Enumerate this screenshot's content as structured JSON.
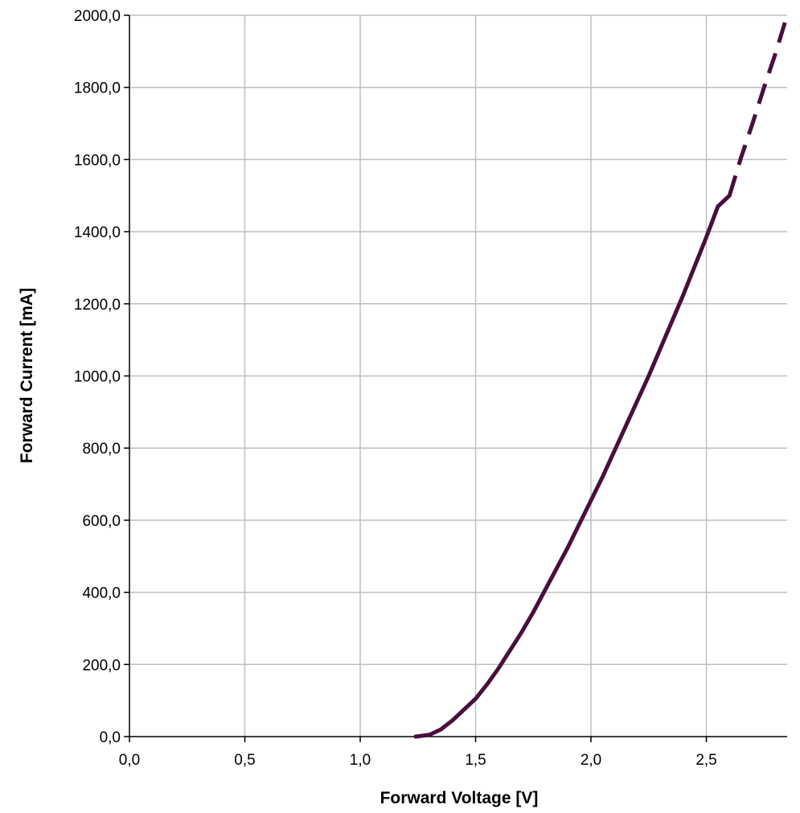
{
  "chart_data": {
    "type": "line",
    "title": "",
    "xlabel": "Forward Voltage [V]",
    "ylabel": "Forward Current [mA]",
    "xlim": [
      0,
      2.85
    ],
    "ylim": [
      0,
      2000
    ],
    "x_ticks": [
      0,
      0.5,
      1.0,
      1.5,
      2.0,
      2.5
    ],
    "x_tick_labels": [
      "0,0",
      "0,5",
      "1,0",
      "1,5",
      "2,0",
      "2,5"
    ],
    "y_ticks": [
      0,
      200,
      400,
      600,
      800,
      1000,
      1200,
      1400,
      1600,
      1800,
      2000
    ],
    "y_tick_labels": [
      "0,0",
      "200,0",
      "400,0",
      "600,0",
      "800,0",
      "1000,0",
      "1200,0",
      "1400,0",
      "1600,0",
      "1800,0",
      "2000,0"
    ],
    "grid": true,
    "legend": "none",
    "series": [
      {
        "style": "solid",
        "color": "#4a0e3f",
        "points": [
          [
            1.24,
            0
          ],
          [
            1.3,
            5
          ],
          [
            1.35,
            20
          ],
          [
            1.4,
            45
          ],
          [
            1.45,
            75
          ],
          [
            1.5,
            105
          ],
          [
            1.55,
            145
          ],
          [
            1.6,
            190
          ],
          [
            1.65,
            240
          ],
          [
            1.7,
            290
          ],
          [
            1.75,
            345
          ],
          [
            1.8,
            405
          ],
          [
            1.85,
            465
          ],
          [
            1.9,
            525
          ],
          [
            1.95,
            590
          ],
          [
            2.0,
            655
          ],
          [
            2.05,
            720
          ],
          [
            2.1,
            790
          ],
          [
            2.15,
            860
          ],
          [
            2.2,
            930
          ],
          [
            2.25,
            1000
          ],
          [
            2.3,
            1075
          ],
          [
            2.35,
            1150
          ],
          [
            2.4,
            1225
          ],
          [
            2.45,
            1305
          ],
          [
            2.5,
            1385
          ],
          [
            2.55,
            1470
          ],
          [
            2.6,
            1500
          ]
        ]
      },
      {
        "style": "dashed",
        "color": "#4a0e3f",
        "points": [
          [
            2.6,
            1500
          ],
          [
            2.65,
            1605
          ],
          [
            2.7,
            1700
          ],
          [
            2.75,
            1800
          ],
          [
            2.8,
            1895
          ],
          [
            2.85,
            2000
          ]
        ]
      }
    ]
  }
}
